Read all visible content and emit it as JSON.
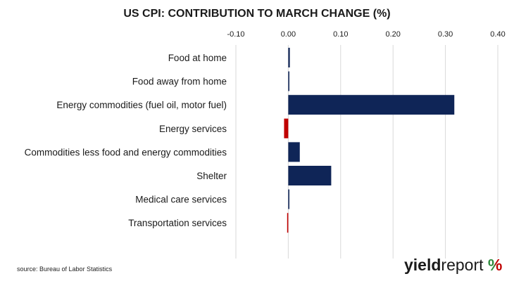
{
  "chart_data": {
    "type": "bar",
    "orientation": "horizontal",
    "title": "US CPI: CONTRIBUTION TO MARCH CHANGE (%)",
    "categories": [
      "Food at home",
      "Food away from home",
      "Energy commodities (fuel oil, motor fuel)",
      "Energy services",
      "Commodities less food and energy commodities",
      "Shelter",
      "Medical care services",
      "Transportation services"
    ],
    "values": [
      0.003,
      0.002,
      0.317,
      -0.008,
      0.022,
      0.082,
      0.002,
      -0.002
    ],
    "x_ticks": [
      -0.1,
      0.0,
      0.1,
      0.2,
      0.3,
      0.4
    ],
    "x_tick_labels": [
      "-0.10",
      "0.00",
      "0.10",
      "0.20",
      "0.30",
      "0.40"
    ],
    "xlim": [
      -0.1,
      0.4
    ],
    "xaxis_position": "top",
    "grid": true,
    "colors": {
      "positive": "#0f2557",
      "negative": "#c00000",
      "grid": "#d9d9d9"
    }
  },
  "source": "source: Bureau of Labor Statistics",
  "logo": {
    "part1": "yield",
    "part2": "report",
    "symbol": "%",
    "color_left": "#2e8b3d",
    "color_right": "#c00000"
  }
}
